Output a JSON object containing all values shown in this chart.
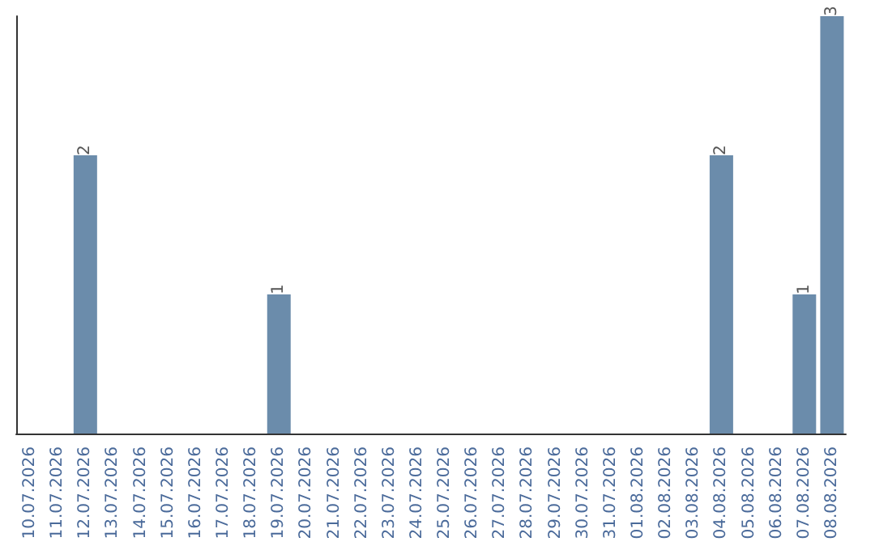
{
  "chart_data": {
    "type": "bar",
    "categories": [
      "10.07.2026",
      "11.07.2026",
      "12.07.2026",
      "13.07.2026",
      "14.07.2026",
      "15.07.2026",
      "16.07.2026",
      "17.07.2026",
      "18.07.2026",
      "19.07.2026",
      "20.07.2026",
      "21.07.2026",
      "22.07.2026",
      "23.07.2026",
      "24.07.2026",
      "25.07.2026",
      "26.07.2026",
      "27.07.2026",
      "28.07.2026",
      "29.07.2026",
      "30.07.2026",
      "31.07.2026",
      "01.08.2026",
      "02.08.2026",
      "03.08.2026",
      "04.08.2026",
      "05.08.2026",
      "06.08.2026",
      "07.08.2026",
      "08.08.2026"
    ],
    "values": [
      null,
      null,
      2,
      null,
      null,
      null,
      null,
      null,
      null,
      1,
      null,
      null,
      null,
      null,
      null,
      null,
      null,
      null,
      null,
      null,
      null,
      null,
      null,
      null,
      null,
      2,
      null,
      null,
      1,
      3
    ],
    "color": "#6b8cab",
    "data_labels": true,
    "tick_labels": "x",
    "grid": false
  }
}
